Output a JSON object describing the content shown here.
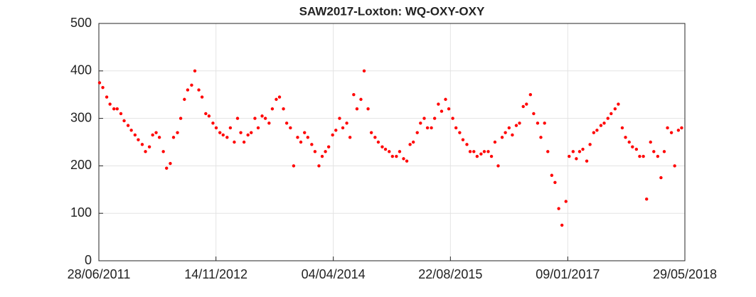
{
  "chart_data": {
    "type": "scatter",
    "title": "SAW2017-Loxton: WQ-OXY-OXY",
    "color": "#ff0000",
    "grid": true,
    "xlim": [
      "28/06/2011",
      "29/05/2018"
    ],
    "xticks": [
      "28/06/2011",
      "14/11/2012",
      "04/04/2014",
      "22/08/2015",
      "09/01/2017",
      "29/05/2018"
    ],
    "ylim": [
      0,
      500
    ],
    "yticks": [
      0,
      100,
      200,
      300,
      400,
      500
    ],
    "x": [
      "01/07/2011",
      "15/07/2011",
      "01/08/2011",
      "15/08/2011",
      "01/09/2011",
      "15/09/2011",
      "01/10/2011",
      "15/10/2011",
      "01/11/2011",
      "15/11/2011",
      "01/12/2011",
      "15/12/2011",
      "01/01/2012",
      "15/01/2012",
      "01/02/2012",
      "15/02/2012",
      "01/03/2012",
      "15/03/2012",
      "01/04/2012",
      "15/04/2012",
      "01/05/2012",
      "15/05/2012",
      "01/06/2012",
      "15/06/2012",
      "01/07/2012",
      "15/07/2012",
      "01/08/2012",
      "15/08/2012",
      "01/09/2012",
      "15/09/2012",
      "01/10/2012",
      "15/10/2012",
      "01/11/2012",
      "15/11/2012",
      "01/12/2012",
      "15/12/2012",
      "01/01/2013",
      "15/01/2013",
      "01/02/2013",
      "15/02/2013",
      "01/03/2013",
      "15/03/2013",
      "01/04/2013",
      "15/04/2013",
      "01/05/2013",
      "15/05/2013",
      "01/06/2013",
      "15/06/2013",
      "01/07/2013",
      "15/07/2013",
      "01/08/2013",
      "15/08/2013",
      "01/09/2013",
      "15/09/2013",
      "01/10/2013",
      "15/10/2013",
      "01/11/2013",
      "15/11/2013",
      "01/12/2013",
      "15/12/2013",
      "01/01/2014",
      "15/01/2014",
      "01/02/2014",
      "15/02/2014",
      "01/03/2014",
      "15/03/2014",
      "01/04/2014",
      "15/04/2014",
      "01/05/2014",
      "15/05/2014",
      "01/06/2014",
      "15/06/2014",
      "01/07/2014",
      "15/07/2014",
      "01/08/2014",
      "15/08/2014",
      "01/09/2014",
      "15/09/2014",
      "01/10/2014",
      "15/10/2014",
      "01/11/2014",
      "15/11/2014",
      "01/12/2014",
      "15/12/2014",
      "01/01/2015",
      "15/01/2015",
      "01/02/2015",
      "15/02/2015",
      "01/03/2015",
      "15/03/2015",
      "01/04/2015",
      "15/04/2015",
      "01/05/2015",
      "15/05/2015",
      "01/06/2015",
      "15/06/2015",
      "01/07/2015",
      "15/07/2015",
      "01/08/2015",
      "15/08/2015",
      "01/09/2015",
      "15/09/2015",
      "01/10/2015",
      "15/10/2015",
      "01/11/2015",
      "15/11/2015",
      "01/12/2015",
      "15/12/2015",
      "01/01/2016",
      "15/01/2016",
      "01/02/2016",
      "15/02/2016",
      "01/03/2016",
      "15/03/2016",
      "01/04/2016",
      "15/04/2016",
      "01/05/2016",
      "15/05/2016",
      "01/06/2016",
      "15/06/2016",
      "01/07/2016",
      "15/07/2016",
      "01/08/2016",
      "15/08/2016",
      "01/09/2016",
      "15/09/2016",
      "01/10/2016",
      "15/10/2016",
      "01/11/2016",
      "15/11/2016",
      "01/12/2016",
      "15/12/2016",
      "01/01/2017",
      "15/01/2017",
      "01/02/2017",
      "15/02/2017",
      "01/03/2017",
      "15/03/2017",
      "01/04/2017",
      "15/04/2017",
      "01/05/2017",
      "15/05/2017",
      "01/06/2017",
      "15/06/2017",
      "01/07/2017",
      "15/07/2017",
      "01/08/2017",
      "15/08/2017",
      "01/09/2017",
      "15/09/2017",
      "01/10/2017",
      "15/10/2017",
      "01/11/2017",
      "15/11/2017",
      "01/12/2017",
      "15/12/2017",
      "01/01/2018",
      "15/01/2018",
      "01/02/2018",
      "15/02/2018",
      "01/03/2018",
      "15/03/2018",
      "01/04/2018",
      "15/04/2018",
      "01/05/2018",
      "15/05/2018"
    ],
    "values": [
      375,
      365,
      345,
      330,
      320,
      320,
      310,
      295,
      285,
      275,
      265,
      255,
      245,
      230,
      240,
      265,
      270,
      260,
      230,
      195,
      205,
      260,
      270,
      300,
      340,
      360,
      370,
      400,
      360,
      345,
      310,
      305,
      290,
      280,
      270,
      265,
      260,
      280,
      250,
      300,
      270,
      250,
      265,
      270,
      300,
      280,
      305,
      300,
      290,
      320,
      340,
      345,
      320,
      290,
      280,
      200,
      260,
      250,
      270,
      260,
      245,
      230,
      200,
      220,
      230,
      240,
      265,
      275,
      300,
      280,
      290,
      260,
      350,
      320,
      340,
      400,
      320,
      270,
      260,
      250,
      240,
      235,
      230,
      220,
      220,
      230,
      215,
      210,
      245,
      250,
      270,
      290,
      300,
      280,
      280,
      300,
      330,
      315,
      340,
      320,
      300,
      280,
      270,
      255,
      245,
      230,
      230,
      220,
      225,
      230,
      230,
      220,
      250,
      200,
      260,
      270,
      280,
      265,
      285,
      290,
      325,
      330,
      350,
      310,
      290,
      260,
      290,
      230,
      180,
      165,
      110,
      75,
      125,
      220,
      230,
      215,
      230,
      235,
      210,
      245,
      270,
      275,
      285,
      290,
      300,
      310,
      320,
      330,
      280,
      260,
      250,
      240,
      235,
      220,
      220,
      130,
      250,
      230,
      220,
      175,
      230,
      280,
      270,
      200,
      275,
      280
    ]
  }
}
